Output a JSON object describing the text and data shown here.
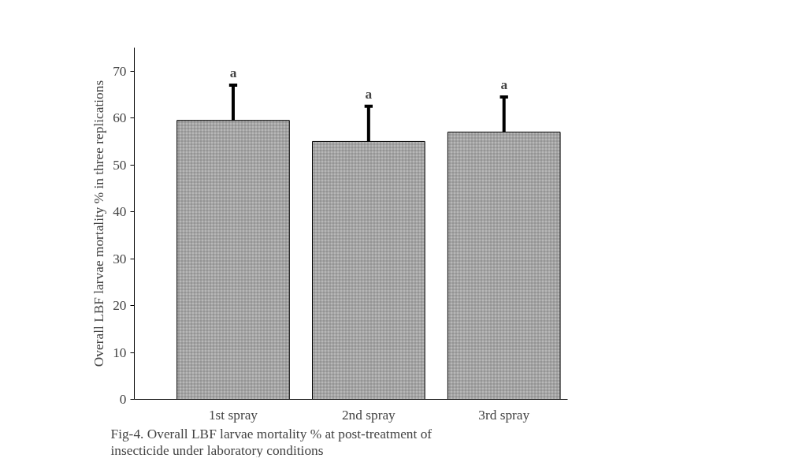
{
  "chart_data": {
    "type": "bar",
    "ylabel": "Overall LBF larvae mortality % in three replications",
    "categories": [
      "1st spray",
      "2nd spray",
      "3rd spray"
    ],
    "values": [
      59.5,
      55,
      57
    ],
    "color": "#b8b8b8",
    "errors": [
      [
        59.5,
        67
      ],
      [
        55,
        62.5
      ],
      [
        57,
        64.5
      ]
    ],
    "ylim": [
      0,
      75
    ],
    "yticks": [
      0,
      10,
      20,
      30,
      40,
      50,
      60,
      70
    ],
    "grid": false,
    "annotations": [
      {
        "text": "a",
        "x": "1st spray",
        "y": 67
      },
      {
        "text": "a",
        "x": "2nd spray",
        "y": 62.5
      },
      {
        "text": "a",
        "x": "3rd spray",
        "y": 64.5
      },
      "Fig-4. Overall LBF larvae mortality % at post-treatment of insecticide under laboratory conditions"
    ]
  }
}
